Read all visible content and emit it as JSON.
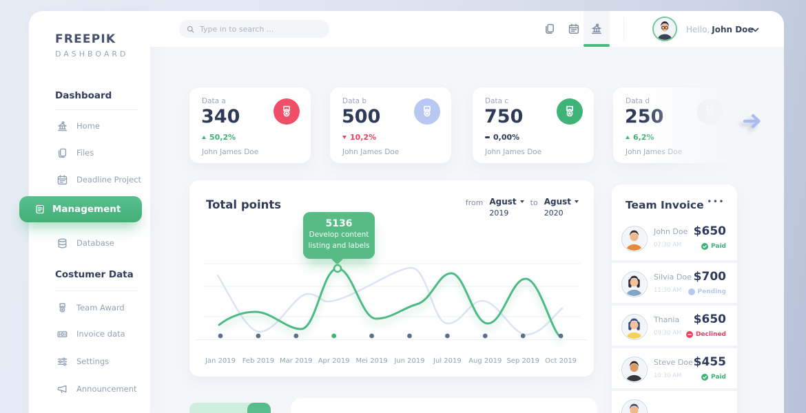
{
  "sidebar": {
    "logo_line1": "FREEPIK",
    "logo_line2": "DASHBOARD",
    "sections": [
      {
        "title": "Dashboard",
        "items": [
          {
            "label": "Home",
            "icon": "bank-icon",
            "active": false
          },
          {
            "label": "Files",
            "icon": "files-icon",
            "active": false
          },
          {
            "label": "Deadline Project",
            "icon": "calendar-icon",
            "active": false
          },
          {
            "label": "Management",
            "icon": "scroll-icon",
            "active": true
          },
          {
            "label": "Database",
            "icon": "database-icon",
            "active": false
          }
        ]
      },
      {
        "title": "Costumer Data",
        "items": [
          {
            "label": "Team Award",
            "icon": "medal-icon",
            "active": false
          },
          {
            "label": "Invoice data",
            "icon": "cash-icon",
            "active": false
          },
          {
            "label": "Settings",
            "icon": "sliders-icon",
            "active": false
          },
          {
            "label": "Announcement",
            "icon": "megaphone-icon",
            "active": false
          }
        ]
      }
    ]
  },
  "topbar": {
    "search_placeholder": "Type in to search ...",
    "action_icons": [
      "files-icon",
      "calendar-icon",
      "bank-icon"
    ],
    "active_action_icon": "bank-icon",
    "greeting_prefix": "Hello,",
    "user_name": "John Doe",
    "user_avatar": {
      "hair": "#23252e",
      "skin": "#f0b98c",
      "shirt": "#3a4354",
      "glasses": true,
      "female": false
    }
  },
  "stat_cards": [
    {
      "label": "Data a",
      "value": "340",
      "direction": "up",
      "change": "50,2%",
      "owner": "John James Doe",
      "badge_color": "#ef5067",
      "badge_icon": "medal-icon"
    },
    {
      "label": "Data b",
      "value": "500",
      "direction": "down",
      "change": "10,2%",
      "owner": "John James Doe",
      "badge_color": "#b9c8f2",
      "badge_icon": "medal-icon"
    },
    {
      "label": "Data c",
      "value": "750",
      "direction": "flat",
      "change": "0,00%",
      "owner": "John James Doe",
      "badge_color": "#3fb377",
      "badge_icon": "medal-icon"
    },
    {
      "label": "Data d",
      "value": "250",
      "direction": "up",
      "change": "6,2%",
      "owner": "John James Doe",
      "badge_color": "#e7ebf1",
      "badge_icon": "medal-icon"
    }
  ],
  "chart": {
    "title": "Total points",
    "from_label": "from",
    "from_month": "Agust",
    "from_year": "2019",
    "to_label": "to",
    "to_month": "Agust",
    "to_year": "2020",
    "tooltip": {
      "value": "5136",
      "line1": "Develop content",
      "line2": "listing and labels"
    }
  },
  "chart_data": {
    "type": "line",
    "title": "Total points",
    "categories": [
      "Jan 2019",
      "Feb 2019",
      "Mar 2019",
      "Apr 2019",
      "Mei 2019",
      "Jun 2019",
      "Jul 2019",
      "Aug 2019",
      "Sep 2019",
      "Oct 2019"
    ],
    "series": [
      {
        "name": "primary-green",
        "color": "#4db983",
        "values": [
          25,
          38,
          22,
          85,
          32,
          46,
          78,
          26,
          73,
          12
        ]
      },
      {
        "name": "secondary-light",
        "color": "#dde3f3",
        "values": [
          72,
          17,
          55,
          50,
          60,
          85,
          28,
          50,
          14,
          42
        ]
      }
    ],
    "highlight": {
      "category": "Apr 2019",
      "value": 5136,
      "note": "Develop content listing and labels"
    },
    "xlabel": "",
    "ylabel": "",
    "ylim": [
      0,
      100
    ],
    "grid": true,
    "y_tick_labels": false,
    "legend": false,
    "highlight_dot_color": "#3fb377",
    "dot_color": "#5f6e8c"
  },
  "invoice": {
    "title": "Team Invoice",
    "menu": "•••",
    "rows": [
      {
        "name": "John Doe",
        "time": "07:30 AM",
        "amount": "$650",
        "status": "Paid",
        "status_type": "paid",
        "avatar": {
          "hair": "#3a2e28",
          "skin": "#f0b98c",
          "shirt": "#e58a3c",
          "female": false,
          "glasses": false
        }
      },
      {
        "name": "Silvia Doe",
        "time": "11:30 AM",
        "amount": "$700",
        "status": "Pending",
        "status_type": "pending",
        "avatar": {
          "hair": "#2f2a33",
          "skin": "#f2c29a",
          "shirt": "#7fa6c9",
          "female": true,
          "glasses": false
        }
      },
      {
        "name": "Thania",
        "time": "09:30 AM",
        "amount": "$650",
        "status": "Declined",
        "status_type": "declined",
        "avatar": {
          "hair": "#3b4a7a",
          "skin": "#f2c29a",
          "shirt": "#f3d258",
          "female": true,
          "glasses": false
        }
      },
      {
        "name": "Steve Doe",
        "time": "10:30 AM",
        "amount": "$455",
        "status": "Paid",
        "status_type": "paid",
        "avatar": {
          "hair": "#33261f",
          "skin": "#d99b66",
          "shirt": "#35373f",
          "female": false,
          "glasses": false
        }
      },
      {
        "name": "",
        "time": "",
        "amount": "",
        "status": "",
        "status_type": "none",
        "partial": true,
        "avatar": {
          "hair": "#4a5568",
          "skin": "#f0b98c",
          "shirt": "#9aa5b8",
          "female": false,
          "glasses": false
        }
      }
    ]
  },
  "colors": {
    "accent_green": "#4db983",
    "badge_red": "#ef5067",
    "badge_periwinkle": "#b9c8f2",
    "badge_green": "#3fb377",
    "badge_gray": "#e7ebf1",
    "negative_red": "#ee3f5e",
    "navy_text": "#2e3a57",
    "muted_text": "#9aa6ba",
    "tooltip_green": "#57bb85",
    "arrow_periwinkle": "#a9bdf2"
  }
}
